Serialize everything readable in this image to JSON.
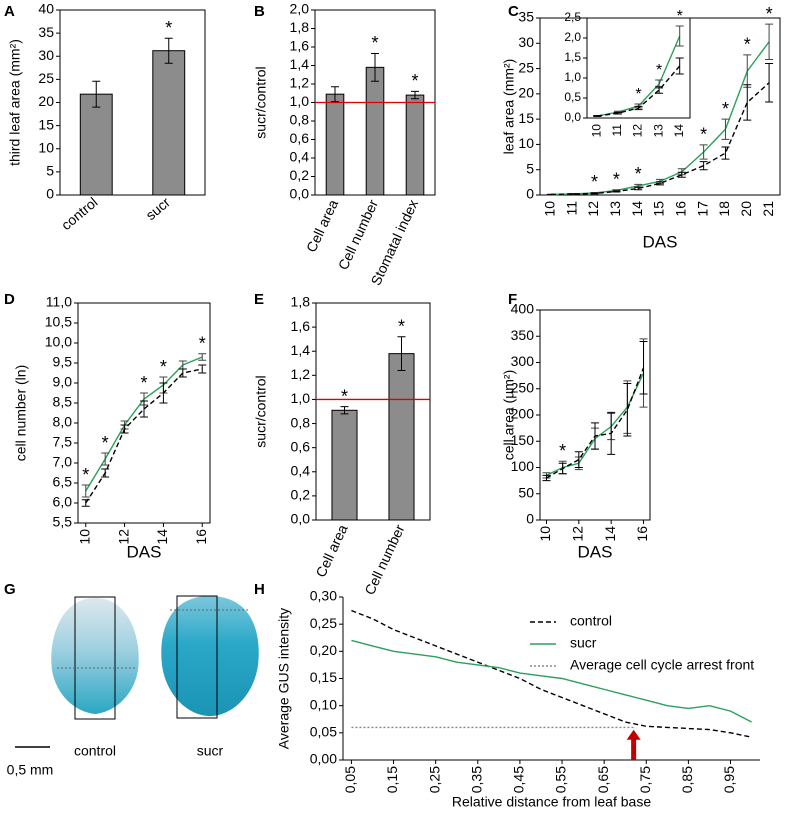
{
  "chart_data": [
    {
      "type": "bar",
      "panel": "A",
      "ylabel": "third leaf area (mm²)",
      "categories": [
        "control",
        "sucr"
      ],
      "values": [
        21.8,
        31.2
      ],
      "errors": [
        2.8,
        2.7
      ],
      "significance": [
        null,
        "*"
      ],
      "color": "#8c8c8c",
      "ylim": [
        0,
        40
      ],
      "yticks": [
        0,
        5,
        10,
        15,
        20,
        25,
        30,
        35,
        40
      ]
    },
    {
      "type": "bar",
      "panel": "B",
      "ylabel": "sucr/control",
      "categories": [
        "Cell area",
        "Cell number",
        "Stomatal index"
      ],
      "values": [
        1.09,
        1.38,
        1.08
      ],
      "errors": [
        0.08,
        0.15,
        0.04
      ],
      "significance": [
        null,
        "*",
        "*"
      ],
      "color": "#8c8c8c",
      "reference_line": 1,
      "reference_color": "#e00000",
      "ylim": [
        0,
        2
      ],
      "yticks": [
        {
          "value": 0,
          "label": "0,0"
        },
        {
          "value": 0.2,
          "label": "0,2"
        },
        {
          "value": 0.4,
          "label": "0,4"
        },
        {
          "value": 0.6,
          "label": "0,6"
        },
        {
          "value": 0.8,
          "label": "0,8"
        },
        {
          "value": 1,
          "label": "1,0"
        },
        {
          "value": 1.2,
          "label": "1,2"
        },
        {
          "value": 1.4,
          "label": "1,4"
        },
        {
          "value": 1.6,
          "label": "1,6"
        },
        {
          "value": 1.8,
          "label": "1,8"
        },
        {
          "value": 2,
          "label": "2,0"
        }
      ]
    },
    {
      "type": "line",
      "panel": "C",
      "xlabel": "DAS",
      "ylabel": "leaf area (mm²)",
      "categories": [
        "10",
        "11",
        "12",
        "13",
        "14",
        "15",
        "16",
        "17",
        "18",
        "20",
        "21"
      ],
      "ylim": [
        0,
        35
      ],
      "yticks": [
        0,
        5,
        10,
        15,
        20,
        25,
        30,
        35
      ],
      "series": [
        {
          "name": "sucr",
          "color": "#2ca05a",
          "values": [
            0.1,
            0.2,
            0.4,
            0.9,
            1.8,
            2.7,
            4.6,
            8.5,
            13.0,
            24.5,
            30.3
          ],
          "errors": [
            0.02,
            0.05,
            0.1,
            0.15,
            0.3,
            0.4,
            0.6,
            1.4,
            2.0,
            3.2,
            3.5
          ]
        },
        {
          "name": "control",
          "color": "#000000",
          "dash": "dashed",
          "values": [
            0.1,
            0.2,
            0.3,
            0.7,
            1.3,
            2.3,
            4.0,
            5.8,
            8.3,
            18.3,
            22.2
          ],
          "errors": [
            0.02,
            0.04,
            0.08,
            0.1,
            0.25,
            0.3,
            0.5,
            0.8,
            1.2,
            3.5,
            3.8
          ]
        }
      ],
      "significance": [
        null,
        null,
        "*",
        "*",
        "*",
        null,
        null,
        "*",
        "*",
        "*",
        "*"
      ],
      "inset": {
        "type": "line",
        "categories": [
          "10",
          "11",
          "12",
          "13",
          "14"
        ],
        "ylim": [
          0,
          2.5
        ],
        "yticks": [
          {
            "value": 0,
            "label": "0,0"
          },
          {
            "value": 0.5,
            "label": "0,5"
          },
          {
            "value": 1,
            "label": "1,0"
          },
          {
            "value": 1.5,
            "label": "1,5"
          },
          {
            "value": 2,
            "label": "2,0"
          },
          {
            "value": 2.5,
            "label": "2,5"
          }
        ],
        "series": [
          {
            "name": "sucr",
            "color": "#2ca05a",
            "values": [
              0.05,
              0.15,
              0.3,
              0.85,
              2.05
            ],
            "errors": [
              0.01,
              0.02,
              0.05,
              0.1,
              0.25
            ]
          },
          {
            "name": "control",
            "color": "#000000",
            "dash": "dashed",
            "values": [
              0.05,
              0.12,
              0.25,
              0.7,
              1.3
            ],
            "errors": [
              0.01,
              0.02,
              0.04,
              0.08,
              0.2
            ]
          }
        ],
        "significance": [
          null,
          null,
          "*",
          "*",
          "*"
        ]
      }
    },
    {
      "type": "line",
      "panel": "D",
      "xlabel": "DAS",
      "ylabel": "cell number (ln)",
      "x": [
        10,
        11,
        12,
        13,
        14,
        15,
        16
      ],
      "xlim": [
        9.6,
        16.4
      ],
      "xticks": [
        10,
        12,
        14,
        16
      ],
      "ylim": [
        5.5,
        11
      ],
      "yticks": [
        {
          "value": 5.5,
          "label": "5,5"
        },
        {
          "value": 6,
          "label": "6,0"
        },
        {
          "value": 6.5,
          "label": "6,5"
        },
        {
          "value": 7,
          "label": "7,0"
        },
        {
          "value": 7.5,
          "label": "7,5"
        },
        {
          "value": 8,
          "label": "8,0"
        },
        {
          "value": 8.5,
          "label": "8,5"
        },
        {
          "value": 9,
          "label": "9,0"
        },
        {
          "value": 9.5,
          "label": "9,5"
        },
        {
          "value": 10,
          "label": "10,0"
        },
        {
          "value": 10.5,
          "label": "10,5"
        },
        {
          "value": 11,
          "label": "11,0"
        }
      ],
      "series": [
        {
          "name": "sucr",
          "color": "#2ca05a",
          "values": [
            6.3,
            7.1,
            7.95,
            8.6,
            8.95,
            9.45,
            9.65
          ],
          "errors": [
            0.15,
            0.15,
            0.1,
            0.15,
            0.2,
            0.1,
            0.08
          ]
        },
        {
          "name": "control",
          "color": "#000000",
          "dash": "dashed",
          "values": [
            6.0,
            6.75,
            7.85,
            8.35,
            8.75,
            9.25,
            9.35
          ],
          "errors": [
            0.08,
            0.1,
            0.1,
            0.2,
            0.25,
            0.1,
            0.1
          ]
        }
      ],
      "significance": [
        "*",
        "*",
        null,
        "*",
        "*",
        null,
        "*"
      ]
    },
    {
      "type": "bar",
      "panel": "E",
      "ylabel": "sucr/control",
      "categories": [
        "Cell area",
        "Cell number"
      ],
      "values": [
        0.91,
        1.38
      ],
      "errors": [
        0.03,
        0.14
      ],
      "significance": [
        "*",
        "*"
      ],
      "color": "#8c8c8c",
      "reference_line": 1,
      "reference_color": "#e00000",
      "ylim": [
        0,
        1.8
      ],
      "yticks": [
        {
          "value": 0,
          "label": "0,0"
        },
        {
          "value": 0.2,
          "label": "0,2"
        },
        {
          "value": 0.4,
          "label": "0,4"
        },
        {
          "value": 0.6,
          "label": "0,6"
        },
        {
          "value": 0.8,
          "label": "0,8"
        },
        {
          "value": 1,
          "label": "1,0"
        },
        {
          "value": 1.2,
          "label": "1,2"
        },
        {
          "value": 1.4,
          "label": "1,4"
        },
        {
          "value": 1.6,
          "label": "1,6"
        },
        {
          "value": 1.8,
          "label": "1,8"
        }
      ]
    },
    {
      "type": "line",
      "panel": "F",
      "xlabel": "DAS",
      "ylabel": "cell area (µm²)",
      "x": [
        10,
        11,
        12,
        13,
        14,
        15,
        16
      ],
      "xlim": [
        9.6,
        16.4
      ],
      "xticks": [
        10,
        12,
        14,
        16
      ],
      "ylim": [
        0,
        400
      ],
      "yticks": [
        0,
        50,
        100,
        150,
        200,
        250,
        300,
        350,
        400
      ],
      "series": [
        {
          "name": "sucr",
          "color": "#2ca05a",
          "values": [
            85,
            100,
            108,
            155,
            178,
            215,
            280
          ],
          "errors": [
            5,
            12,
            12,
            20,
            25,
            50,
            65
          ]
        },
        {
          "name": "control",
          "color": "#000000",
          "dash": "dashed",
          "values": [
            80,
            98,
            115,
            160,
            165,
            210,
            290
          ],
          "errors": [
            5,
            10,
            15,
            25,
            40,
            50,
            50
          ]
        }
      ],
      "significance": [
        null,
        "*",
        null,
        null,
        null,
        null,
        null
      ]
    },
    {
      "type": "image",
      "panel": "G",
      "captions": [
        "control",
        "sucr"
      ],
      "scale_bar": "0,5 mm"
    },
    {
      "type": "line",
      "panel": "H",
      "xlabel": "Relative distance from leaf base",
      "ylabel": "Average GUS intensity",
      "legend": "upper right",
      "x": [
        0.05,
        0.1,
        0.15,
        0.2,
        0.25,
        0.3,
        0.35,
        0.4,
        0.45,
        0.5,
        0.55,
        0.6,
        0.65,
        0.7,
        0.75,
        0.8,
        0.85,
        0.9,
        0.95,
        1.0
      ],
      "xlim": [
        0.03,
        1.02
      ],
      "xticks": [
        {
          "value": 0.05,
          "label": "0,05"
        },
        {
          "value": 0.15,
          "label": "0,15"
        },
        {
          "value": 0.25,
          "label": "0,25"
        },
        {
          "value": 0.35,
          "label": "0,35"
        },
        {
          "value": 0.45,
          "label": "0,45"
        },
        {
          "value": 0.55,
          "label": "0,55"
        },
        {
          "value": 0.65,
          "label": "0,65"
        },
        {
          "value": 0.75,
          "label": "0,75"
        },
        {
          "value": 0.85,
          "label": "0,85"
        },
        {
          "value": 0.95,
          "label": "0,95"
        }
      ],
      "ylim": [
        0,
        0.3
      ],
      "yticks": [
        {
          "value": 0,
          "label": "0,00"
        },
        {
          "value": 0.05,
          "label": "0,05"
        },
        {
          "value": 0.1,
          "label": "0,10"
        },
        {
          "value": 0.15,
          "label": "0,15"
        },
        {
          "value": 0.2,
          "label": "0,20"
        },
        {
          "value": 0.25,
          "label": "0,25"
        },
        {
          "value": 0.3,
          "label": "0,30"
        }
      ],
      "series": [
        {
          "name": "control",
          "color": "#000000",
          "dash": "dashed",
          "values": [
            0.275,
            0.26,
            0.24,
            0.225,
            0.21,
            0.195,
            0.18,
            0.165,
            0.15,
            0.13,
            0.115,
            0.1,
            0.085,
            0.07,
            0.062,
            0.06,
            0.058,
            0.056,
            0.05,
            0.042
          ]
        },
        {
          "name": "sucr",
          "color": "#2ca05a",
          "values": [
            0.22,
            0.21,
            0.2,
            0.195,
            0.19,
            0.18,
            0.175,
            0.17,
            0.16,
            0.155,
            0.15,
            0.14,
            0.13,
            0.12,
            0.11,
            0.1,
            0.095,
            0.1,
            0.09,
            0.07
          ]
        },
        {
          "name": "Average cell cycle arrest front",
          "color": "#888888",
          "dash": "dotted",
          "x": [
            0.05,
            0.72
          ],
          "values": [
            0.06,
            0.06
          ]
        }
      ],
      "arrow_x": 0.72,
      "arrow_color": "#c00000"
    }
  ]
}
